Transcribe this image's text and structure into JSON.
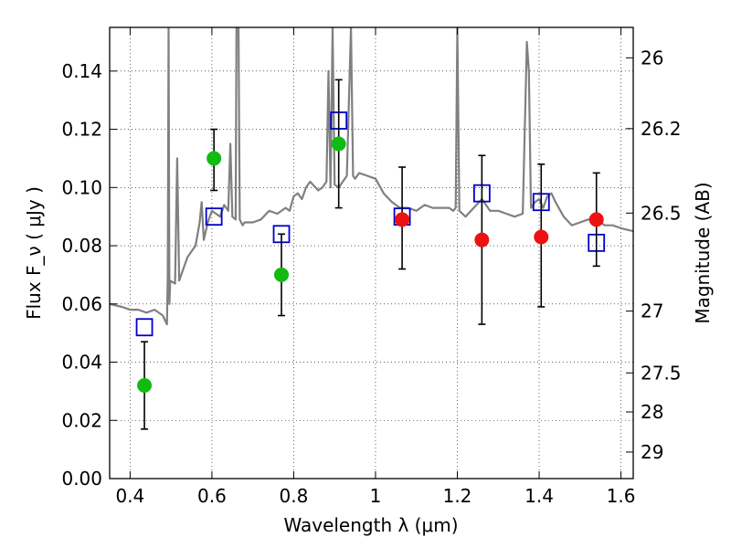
{
  "chart_data": {
    "type": "scatter",
    "xlabel": "Wavelength  λ (μm)",
    "ylabel": "Flux  F_ν  ( μJy )",
    "ylabel_right": "Magnitude (AB)",
    "xlim": [
      0.35,
      1.63
    ],
    "ylim": [
      0.0,
      0.155
    ],
    "grid": true,
    "x_ticks": [
      {
        "value": 0.4,
        "label": "0.4"
      },
      {
        "value": 0.6,
        "label": "0.6"
      },
      {
        "value": 0.8,
        "label": "0.8"
      },
      {
        "value": 1.0,
        "label": "1"
      },
      {
        "value": 1.2,
        "label": "1.2"
      },
      {
        "value": 1.4,
        "label": "1.4"
      },
      {
        "value": 1.6,
        "label": "1.6"
      }
    ],
    "y_ticks": [
      {
        "value": 0.0,
        "label": "0.00"
      },
      {
        "value": 0.02,
        "label": "0.02"
      },
      {
        "value": 0.04,
        "label": "0.04"
      },
      {
        "value": 0.06,
        "label": "0.06"
      },
      {
        "value": 0.08,
        "label": "0.08"
      },
      {
        "value": 0.1,
        "label": "0.10"
      },
      {
        "value": 0.12,
        "label": "0.12"
      },
      {
        "value": 0.14,
        "label": "0.14"
      }
    ],
    "right_ticks": [
      {
        "value": 26.0,
        "label": "26"
      },
      {
        "value": 26.2,
        "label": "26.2"
      },
      {
        "value": 26.5,
        "label": "26.5"
      },
      {
        "value": 27.0,
        "label": "27"
      },
      {
        "value": 27.5,
        "label": "27.5"
      },
      {
        "value": 28.0,
        "label": "28"
      },
      {
        "value": 29.0,
        "label": "29"
      }
    ],
    "series": [
      {
        "color": "#808080",
        "marker": "line",
        "points": [
          [
            0.35,
            0.06
          ],
          [
            0.38,
            0.059
          ],
          [
            0.4,
            0.058
          ],
          [
            0.42,
            0.058
          ],
          [
            0.44,
            0.057
          ],
          [
            0.46,
            0.058
          ],
          [
            0.48,
            0.056
          ],
          [
            0.49,
            0.053
          ],
          [
            0.492,
            0.07
          ],
          [
            0.494,
            0.155
          ],
          [
            0.496,
            0.06
          ],
          [
            0.498,
            0.068
          ],
          [
            0.51,
            0.067
          ],
          [
            0.515,
            0.11
          ],
          [
            0.52,
            0.068
          ],
          [
            0.53,
            0.072
          ],
          [
            0.54,
            0.076
          ],
          [
            0.55,
            0.078
          ],
          [
            0.56,
            0.08
          ],
          [
            0.57,
            0.088
          ],
          [
            0.575,
            0.095
          ],
          [
            0.58,
            0.082
          ],
          [
            0.59,
            0.088
          ],
          [
            0.6,
            0.092
          ],
          [
            0.61,
            0.091
          ],
          [
            0.62,
            0.09
          ],
          [
            0.63,
            0.094
          ],
          [
            0.64,
            0.092
          ],
          [
            0.645,
            0.115
          ],
          [
            0.65,
            0.09
          ],
          [
            0.658,
            0.089
          ],
          [
            0.66,
            0.155
          ],
          [
            0.665,
            0.155
          ],
          [
            0.668,
            0.089
          ],
          [
            0.675,
            0.087
          ],
          [
            0.68,
            0.088
          ],
          [
            0.7,
            0.088
          ],
          [
            0.72,
            0.089
          ],
          [
            0.74,
            0.092
          ],
          [
            0.76,
            0.091
          ],
          [
            0.78,
            0.093
          ],
          [
            0.79,
            0.092
          ],
          [
            0.8,
            0.097
          ],
          [
            0.81,
            0.098
          ],
          [
            0.82,
            0.096
          ],
          [
            0.83,
            0.1
          ],
          [
            0.84,
            0.102
          ],
          [
            0.86,
            0.099
          ],
          [
            0.87,
            0.1
          ],
          [
            0.88,
            0.102
          ],
          [
            0.885,
            0.14
          ],
          [
            0.89,
            0.1
          ],
          [
            0.895,
            0.155
          ],
          [
            0.9,
            0.101
          ],
          [
            0.91,
            0.1
          ],
          [
            0.93,
            0.104
          ],
          [
            0.94,
            0.155
          ],
          [
            0.945,
            0.104
          ],
          [
            0.95,
            0.103
          ],
          [
            0.96,
            0.105
          ],
          [
            0.98,
            0.104
          ],
          [
            1.0,
            0.103
          ],
          [
            1.02,
            0.098
          ],
          [
            1.04,
            0.095
          ],
          [
            1.06,
            0.093
          ],
          [
            1.08,
            0.093
          ],
          [
            1.1,
            0.092
          ],
          [
            1.12,
            0.094
          ],
          [
            1.14,
            0.093
          ],
          [
            1.16,
            0.093
          ],
          [
            1.18,
            0.093
          ],
          [
            1.19,
            0.092
          ],
          [
            1.196,
            0.093
          ],
          [
            1.2,
            0.155
          ],
          [
            1.205,
            0.092
          ],
          [
            1.22,
            0.09
          ],
          [
            1.24,
            0.093
          ],
          [
            1.26,
            0.096
          ],
          [
            1.28,
            0.092
          ],
          [
            1.3,
            0.092
          ],
          [
            1.32,
            0.091
          ],
          [
            1.34,
            0.09
          ],
          [
            1.36,
            0.091
          ],
          [
            1.37,
            0.15
          ],
          [
            1.375,
            0.14
          ],
          [
            1.38,
            0.093
          ],
          [
            1.39,
            0.095
          ],
          [
            1.4,
            0.096
          ],
          [
            1.41,
            0.093
          ],
          [
            1.42,
            0.097
          ],
          [
            1.43,
            0.098
          ],
          [
            1.44,
            0.095
          ],
          [
            1.46,
            0.09
          ],
          [
            1.48,
            0.087
          ],
          [
            1.5,
            0.088
          ],
          [
            1.52,
            0.089
          ],
          [
            1.54,
            0.089
          ],
          [
            1.56,
            0.087
          ],
          [
            1.58,
            0.087
          ],
          [
            1.6,
            0.086
          ],
          [
            1.63,
            0.085
          ]
        ]
      },
      {
        "color": "#0000cc",
        "marker": "open-square",
        "points": [
          [
            0.435,
            0.052
          ],
          [
            0.605,
            0.09
          ],
          [
            0.77,
            0.084
          ],
          [
            0.91,
            0.123
          ],
          [
            1.065,
            0.09
          ],
          [
            1.26,
            0.098
          ],
          [
            1.405,
            0.095
          ],
          [
            1.54,
            0.081
          ]
        ]
      },
      {
        "color": "#11bb11",
        "marker": "filled-circle",
        "points": [
          {
            "x": 0.435,
            "y": 0.032,
            "ylo": 0.017,
            "yhi": 0.047
          },
          {
            "x": 0.605,
            "y": 0.11,
            "ylo": 0.099,
            "yhi": 0.12
          },
          {
            "x": 0.77,
            "y": 0.07,
            "ylo": 0.056,
            "yhi": 0.084
          },
          {
            "x": 0.91,
            "y": 0.115,
            "ylo": 0.093,
            "yhi": 0.137
          }
        ]
      },
      {
        "color": "#ee1111",
        "marker": "filled-circle",
        "points": [
          {
            "x": 1.065,
            "y": 0.089,
            "ylo": 0.072,
            "yhi": 0.107
          },
          {
            "x": 1.26,
            "y": 0.082,
            "ylo": 0.053,
            "yhi": 0.111
          },
          {
            "x": 1.405,
            "y": 0.083,
            "ylo": 0.059,
            "yhi": 0.108
          },
          {
            "x": 1.54,
            "y": 0.089,
            "ylo": 0.073,
            "yhi": 0.105
          }
        ]
      }
    ]
  }
}
